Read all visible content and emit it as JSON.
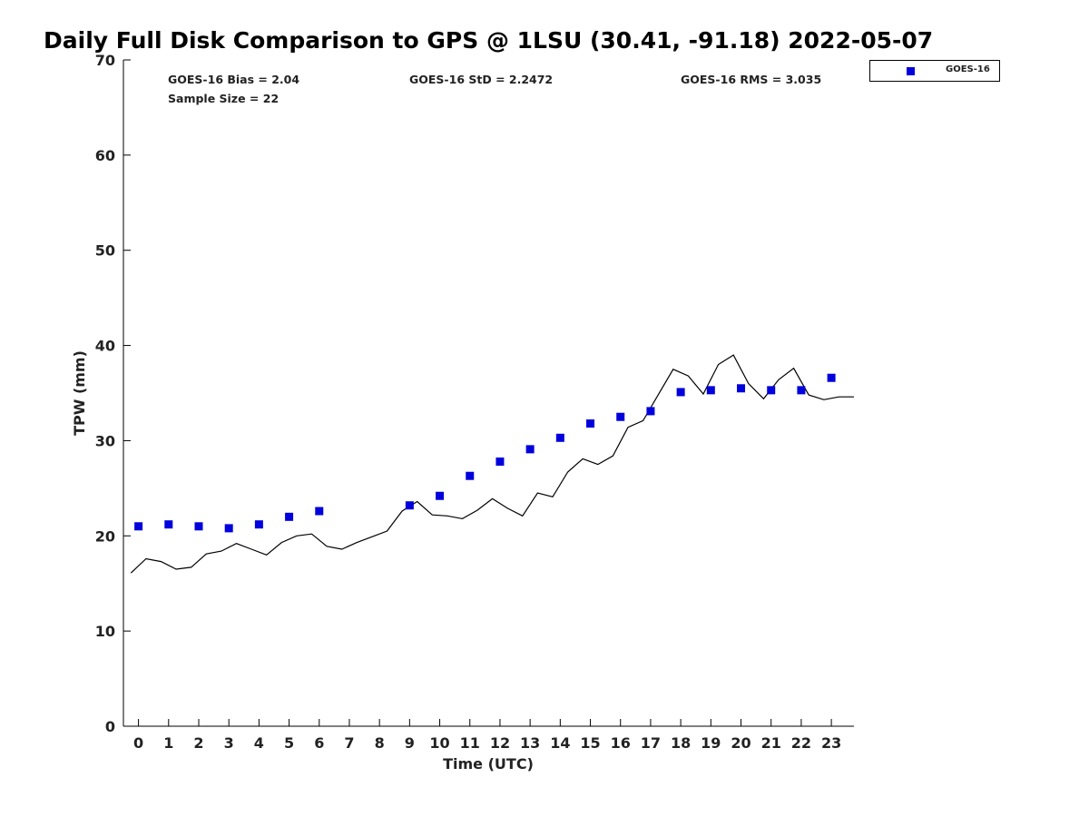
{
  "chart_data": {
    "type": "scatter",
    "title": "Daily Full Disk Comparison to GPS @ 1LSU (30.41, -91.18) 2022-05-07",
    "xlabel": "Time (UTC)",
    "ylabel": "TPW (mm)",
    "xlim": [
      -0.5,
      23.75
    ],
    "ylim": [
      0,
      70
    ],
    "xticks": [
      0,
      1,
      2,
      3,
      4,
      5,
      6,
      7,
      8,
      9,
      10,
      11,
      12,
      13,
      14,
      15,
      16,
      17,
      18,
      19,
      20,
      21,
      22,
      23
    ],
    "yticks": [
      0,
      10,
      20,
      30,
      40,
      50,
      60,
      70
    ],
    "grid": false,
    "legend_position": "top-right",
    "stats": {
      "bias": "GOES-16 Bias = 2.04",
      "std": "GOES-16 StD = 2.2472",
      "rms": "GOES-16 RMS = 3.035",
      "sample": "Sample Size = 22"
    },
    "series": [
      {
        "name": "GOES-16",
        "kind": "markers",
        "color": "#0000dd",
        "x": [
          0,
          1,
          2,
          3,
          4,
          5,
          6,
          9,
          10,
          11,
          12,
          13,
          14,
          15,
          16,
          17,
          18,
          19,
          20,
          21,
          22,
          23
        ],
        "y": [
          21.0,
          21.2,
          21.0,
          20.8,
          21.2,
          22.0,
          22.6,
          23.2,
          24.2,
          26.3,
          27.8,
          29.1,
          30.3,
          31.8,
          32.5,
          33.1,
          35.1,
          35.3,
          35.5,
          35.3,
          35.3,
          36.6
        ]
      },
      {
        "kind": "line",
        "color": "#000000",
        "x": [
          -0.25,
          0.25,
          0.75,
          1.25,
          1.75,
          2.25,
          2.75,
          3.25,
          3.75,
          4.25,
          4.75,
          5.25,
          5.75,
          6.25,
          6.75,
          7.25,
          7.75,
          8.25,
          8.75,
          9.25,
          9.75,
          10.25,
          10.75,
          11.25,
          11.75,
          12.25,
          12.75,
          13.25,
          13.75,
          14.25,
          14.75,
          15.25,
          15.75,
          16.25,
          16.75,
          17.25,
          17.75,
          18.25,
          18.75,
          19.25,
          19.75,
          20.25,
          20.75,
          21.25,
          21.75,
          22.25,
          22.75,
          23.25,
          23.75
        ],
        "y": [
          16.1,
          17.6,
          17.3,
          16.5,
          16.7,
          18.1,
          18.4,
          19.2,
          18.6,
          18.0,
          19.3,
          20.0,
          20.2,
          18.9,
          18.6,
          19.3,
          19.9,
          20.5,
          22.6,
          23.6,
          22.2,
          22.1,
          21.8,
          22.7,
          23.9,
          22.9,
          22.1,
          24.5,
          24.1,
          26.7,
          28.1,
          27.5,
          28.4,
          31.4,
          32.1,
          34.8,
          37.5,
          36.8,
          34.9,
          38.0,
          39.0,
          36.0,
          34.4,
          36.4,
          37.6,
          34.8,
          34.3,
          34.6,
          34.6
        ]
      }
    ]
  }
}
